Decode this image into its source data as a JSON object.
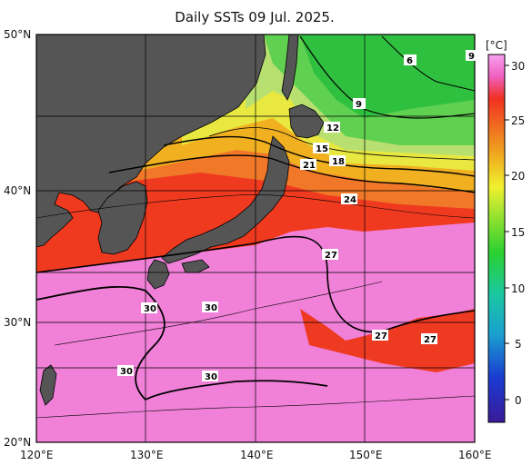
{
  "title": "Daily SSTs 09 Jul. 2025.",
  "map": {
    "lon_range": [
      120,
      160
    ],
    "lat_range": [
      20,
      50
    ],
    "lon_ticks": [
      "120°E",
      "130°E",
      "140°E",
      "150°E",
      "160°E"
    ],
    "lat_ticks": [
      "50°N",
      "40°N",
      "30°N",
      "20°N"
    ],
    "grid": true,
    "land_color": "#555555"
  },
  "colorbar": {
    "unit": "[°C]",
    "ticks": [
      "30",
      "25",
      "20",
      "15",
      "10",
      "5",
      "0"
    ],
    "range": [
      -2,
      32
    ],
    "colors": [
      "#3a1a9a",
      "#1a3ad0",
      "#1aa0d0",
      "#1ac8a0",
      "#2ad030",
      "#8ae030",
      "#f0f030",
      "#f0b020",
      "#f07020",
      "#f03020",
      "#f060c0",
      "#f8a0f0"
    ]
  },
  "contour_labels": [
    "6",
    "9",
    "9",
    "12",
    "15",
    "18",
    "21",
    "24",
    "27",
    "27",
    "27",
    "30",
    "30",
    "30",
    "30"
  ]
}
